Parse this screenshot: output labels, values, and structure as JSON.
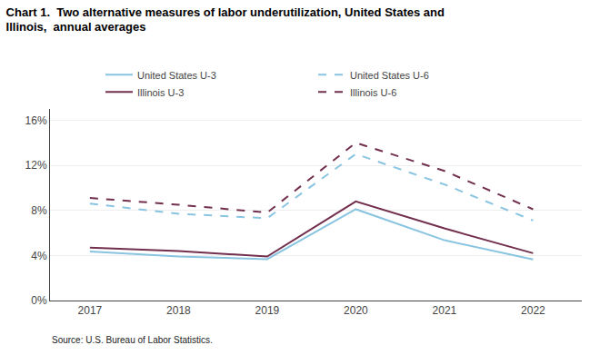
{
  "chart_data": {
    "type": "line",
    "title": "Chart 1.  Two alternative measures of labor underutilization, United States and\nIllinois,  annual averages",
    "annotations": [
      "Source: U.S. Bureau of Labor Statistics."
    ],
    "x": [
      2017,
      2018,
      2019,
      2020,
      2021,
      2022
    ],
    "series": [
      {
        "name": "United States U-3",
        "color": "#89c4e1",
        "line_style": "solid",
        "values": [
          4.35,
          3.9,
          3.67,
          8.1,
          5.35,
          3.65
        ]
      },
      {
        "name": "United States U-6",
        "color": "#89c4e1",
        "line_style": "dashed",
        "values": [
          8.6,
          7.7,
          7.3,
          13.0,
          10.3,
          7.1
        ]
      },
      {
        "name": "Illinois U-3",
        "color": "#722F4E",
        "line_style": "solid",
        "values": [
          4.7,
          4.4,
          3.9,
          8.8,
          6.4,
          4.2
        ]
      },
      {
        "name": "Illinois U-6",
        "color": "#722F4E",
        "line_style": "dashed",
        "values": [
          9.1,
          8.5,
          7.8,
          14.0,
          11.5,
          8.1
        ]
      }
    ],
    "xlim": [
      2016.55,
      2022.55
    ],
    "xticks": [
      2017,
      2018,
      2019,
      2020,
      2021,
      2022
    ],
    "ylim": [
      0,
      17
    ],
    "yticks": [
      {
        "value": 0,
        "label": "0%"
      },
      {
        "value": 4,
        "label": "4%"
      },
      {
        "value": 8,
        "label": "8%"
      },
      {
        "value": 12,
        "label": "12%"
      },
      {
        "value": 16,
        "label": "16%"
      }
    ],
    "grid": "y",
    "legend": "top"
  }
}
